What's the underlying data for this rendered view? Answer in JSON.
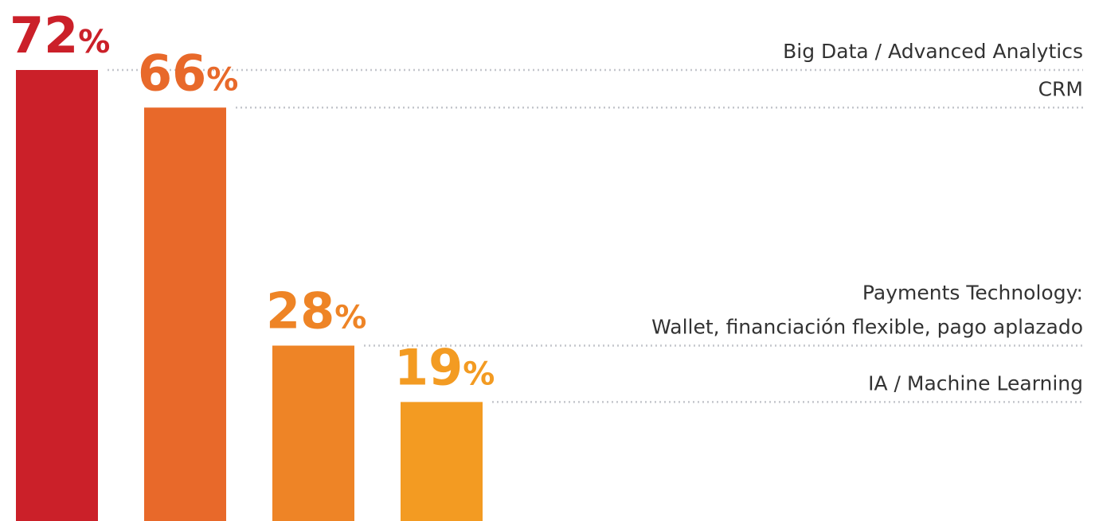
{
  "chart_data": {
    "type": "bar",
    "categories": [
      "Big Data / Advanced Analytics",
      "CRM",
      "Payments Technology:\nWallet, financiación flexible, pago aplazado",
      "IA / Machine Learning"
    ],
    "values": [
      72,
      66,
      28,
      19
    ],
    "value_labels": [
      "72%",
      "66%",
      "28%",
      "19%"
    ],
    "colors": [
      "#cb2029",
      "#e8692a",
      "#ee8426",
      "#f39b22"
    ]
  }
}
